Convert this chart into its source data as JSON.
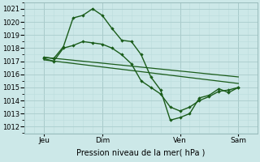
{
  "title": "",
  "xlabel": "Pression niveau de la mer( hPa )",
  "bg_color": "#cce8e8",
  "grid_color_major": "#aacccc",
  "grid_color_minor": "#bbdddd",
  "line_color": "#1a5c1a",
  "ylim": [
    1011.5,
    1021.5
  ],
  "yticks": [
    1012,
    1013,
    1014,
    1015,
    1016,
    1017,
    1018,
    1019,
    1020,
    1021
  ],
  "xtick_labels": [
    "Jeu",
    "Dim",
    "Ven",
    "Sam"
  ],
  "xlim": [
    0,
    24
  ],
  "xtick_positions": [
    2,
    8,
    16,
    22
  ],
  "series1_x": [
    2,
    3,
    4,
    5,
    6,
    7,
    8,
    9,
    10,
    11,
    12,
    13,
    14,
    15,
    16,
    17,
    18,
    19,
    20,
    21,
    22
  ],
  "series1_y": [
    1017.3,
    1017.2,
    1018.1,
    1020.3,
    1020.5,
    1021.0,
    1020.5,
    1019.5,
    1018.6,
    1018.5,
    1017.5,
    1015.8,
    1014.8,
    1012.5,
    1012.7,
    1013.0,
    1014.2,
    1014.4,
    1014.9,
    1014.6,
    1015.0
  ],
  "series2_x": [
    2,
    3,
    4,
    5,
    6,
    7,
    8,
    9,
    10,
    11,
    12,
    13,
    14,
    15,
    16,
    17,
    18,
    19,
    20,
    21,
    22
  ],
  "series2_y": [
    1017.2,
    1017.0,
    1018.0,
    1018.2,
    1018.5,
    1018.4,
    1018.3,
    1018.0,
    1017.5,
    1016.8,
    1015.5,
    1015.0,
    1014.5,
    1013.5,
    1013.2,
    1013.5,
    1014.0,
    1014.3,
    1014.7,
    1014.8,
    1015.0
  ],
  "series3_x": [
    2,
    22
  ],
  "series3_y": [
    1017.3,
    1015.8
  ],
  "series4_x": [
    2,
    22
  ],
  "series4_y": [
    1017.1,
    1015.3
  ]
}
